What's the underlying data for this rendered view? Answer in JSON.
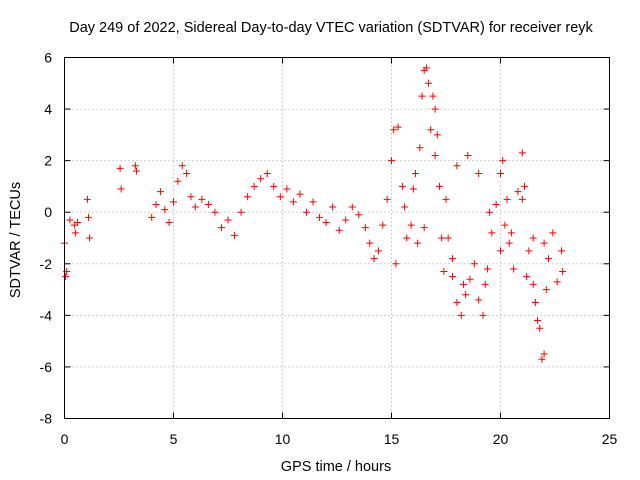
{
  "chart_data": {
    "type": "scatter",
    "title": "Day 249 of 2022, Sidereal Day-to-day VTEC variation (SDTVAR) for receiver reyk",
    "xlabel": "GPS time / hours",
    "ylabel": "SDTVAR / TECUs",
    "xlim": [
      0,
      25
    ],
    "ylim": [
      -8,
      6
    ],
    "xticks": [
      "0",
      "5",
      "10",
      "15",
      "20",
      "25"
    ],
    "yticks": [
      "-8",
      "-6",
      "-4",
      "-2",
      "0",
      "2",
      "4",
      "6"
    ],
    "grid": true,
    "marker": "+",
    "color": "#ff0000",
    "series": [
      {
        "name": "SDTVAR",
        "points": [
          [
            0.0,
            -1.2
          ],
          [
            0.05,
            -2.5
          ],
          [
            0.1,
            -2.3
          ],
          [
            0.25,
            -0.3
          ],
          [
            0.45,
            -0.5
          ],
          [
            0.5,
            -0.8
          ],
          [
            0.6,
            -0.4
          ],
          [
            1.05,
            0.5
          ],
          [
            1.1,
            -0.2
          ],
          [
            1.15,
            -1.0
          ],
          [
            2.55,
            1.7
          ],
          [
            2.6,
            0.9
          ],
          [
            3.25,
            1.8
          ],
          [
            3.3,
            1.6
          ],
          [
            4.0,
            -0.2
          ],
          [
            4.2,
            0.3
          ],
          [
            4.4,
            0.8
          ],
          [
            4.6,
            0.1
          ],
          [
            4.8,
            -0.4
          ],
          [
            5.0,
            0.4
          ],
          [
            5.2,
            1.2
          ],
          [
            5.4,
            1.8
          ],
          [
            5.6,
            1.5
          ],
          [
            5.8,
            0.6
          ],
          [
            6.0,
            0.2
          ],
          [
            6.3,
            0.5
          ],
          [
            6.6,
            0.3
          ],
          [
            6.9,
            0.0
          ],
          [
            7.2,
            -0.6
          ],
          [
            7.5,
            -0.3
          ],
          [
            7.8,
            -0.9
          ],
          [
            8.1,
            0.0
          ],
          [
            8.4,
            0.6
          ],
          [
            8.7,
            1.0
          ],
          [
            9.0,
            1.3
          ],
          [
            9.3,
            1.5
          ],
          [
            9.6,
            1.0
          ],
          [
            9.9,
            0.6
          ],
          [
            10.2,
            0.9
          ],
          [
            10.5,
            0.4
          ],
          [
            10.8,
            0.7
          ],
          [
            11.1,
            0.0
          ],
          [
            11.4,
            0.4
          ],
          [
            11.7,
            -0.2
          ],
          [
            12.0,
            -0.4
          ],
          [
            12.3,
            0.2
          ],
          [
            12.6,
            -0.7
          ],
          [
            12.9,
            -0.3
          ],
          [
            13.2,
            0.2
          ],
          [
            13.5,
            -0.1
          ],
          [
            13.8,
            -0.6
          ],
          [
            14.0,
            -1.2
          ],
          [
            14.2,
            -1.8
          ],
          [
            14.4,
            -1.5
          ],
          [
            14.6,
            -0.5
          ],
          [
            14.8,
            0.5
          ],
          [
            15.0,
            2.0
          ],
          [
            15.1,
            3.2
          ],
          [
            15.3,
            3.3
          ],
          [
            15.5,
            1.0
          ],
          [
            15.7,
            -1.0
          ],
          [
            15.9,
            -0.5
          ],
          [
            16.1,
            1.5
          ],
          [
            16.3,
            2.5
          ],
          [
            16.4,
            4.5
          ],
          [
            16.5,
            5.5
          ],
          [
            16.6,
            5.6
          ],
          [
            16.7,
            5.0
          ],
          [
            16.8,
            3.2
          ],
          [
            16.9,
            4.5
          ],
          [
            17.0,
            4.0
          ],
          [
            17.1,
            3.0
          ],
          [
            17.2,
            1.0
          ],
          [
            17.3,
            -1.0
          ],
          [
            17.4,
            -2.3
          ],
          [
            17.6,
            -1.0
          ],
          [
            17.8,
            -2.5
          ],
          [
            18.0,
            -3.5
          ],
          [
            18.2,
            -4.0
          ],
          [
            18.4,
            -3.2
          ],
          [
            18.6,
            -2.6
          ],
          [
            18.8,
            -2.0
          ],
          [
            19.0,
            -3.4
          ],
          [
            19.2,
            -4.0
          ],
          [
            19.4,
            -2.2
          ],
          [
            19.6,
            -0.8
          ],
          [
            19.8,
            0.3
          ],
          [
            20.0,
            1.5
          ],
          [
            20.1,
            2.0
          ],
          [
            20.2,
            -0.5
          ],
          [
            20.4,
            -1.2
          ],
          [
            20.6,
            -2.2
          ],
          [
            20.8,
            0.8
          ],
          [
            21.0,
            2.3
          ],
          [
            21.1,
            1.0
          ],
          [
            21.3,
            -1.5
          ],
          [
            21.5,
            -2.8
          ],
          [
            21.7,
            -4.2
          ],
          [
            21.8,
            -4.5
          ],
          [
            21.9,
            -5.7
          ],
          [
            22.0,
            -5.5
          ],
          [
            22.1,
            -3.0
          ],
          [
            22.2,
            -1.8
          ],
          [
            22.4,
            -0.8
          ],
          [
            22.6,
            -2.7
          ],
          [
            22.8,
            -1.5
          ],
          [
            22.85,
            -2.3
          ],
          [
            16.2,
            -1.2
          ],
          [
            16.5,
            -0.6
          ],
          [
            17.0,
            2.2
          ],
          [
            17.5,
            0.5
          ],
          [
            18.0,
            1.8
          ],
          [
            18.5,
            2.2
          ],
          [
            19.0,
            1.5
          ],
          [
            19.5,
            0.0
          ],
          [
            20.0,
            -1.5
          ],
          [
            20.5,
            -0.8
          ],
          [
            21.0,
            0.5
          ],
          [
            21.5,
            -1.0
          ],
          [
            22.0,
            -1.2
          ],
          [
            15.2,
            -2.0
          ],
          [
            15.6,
            0.2
          ],
          [
            16.0,
            0.9
          ],
          [
            17.8,
            -1.8
          ],
          [
            18.3,
            -2.8
          ],
          [
            19.3,
            -2.8
          ],
          [
            20.3,
            0.5
          ],
          [
            21.2,
            -2.5
          ],
          [
            21.6,
            -3.5
          ]
        ]
      }
    ]
  }
}
